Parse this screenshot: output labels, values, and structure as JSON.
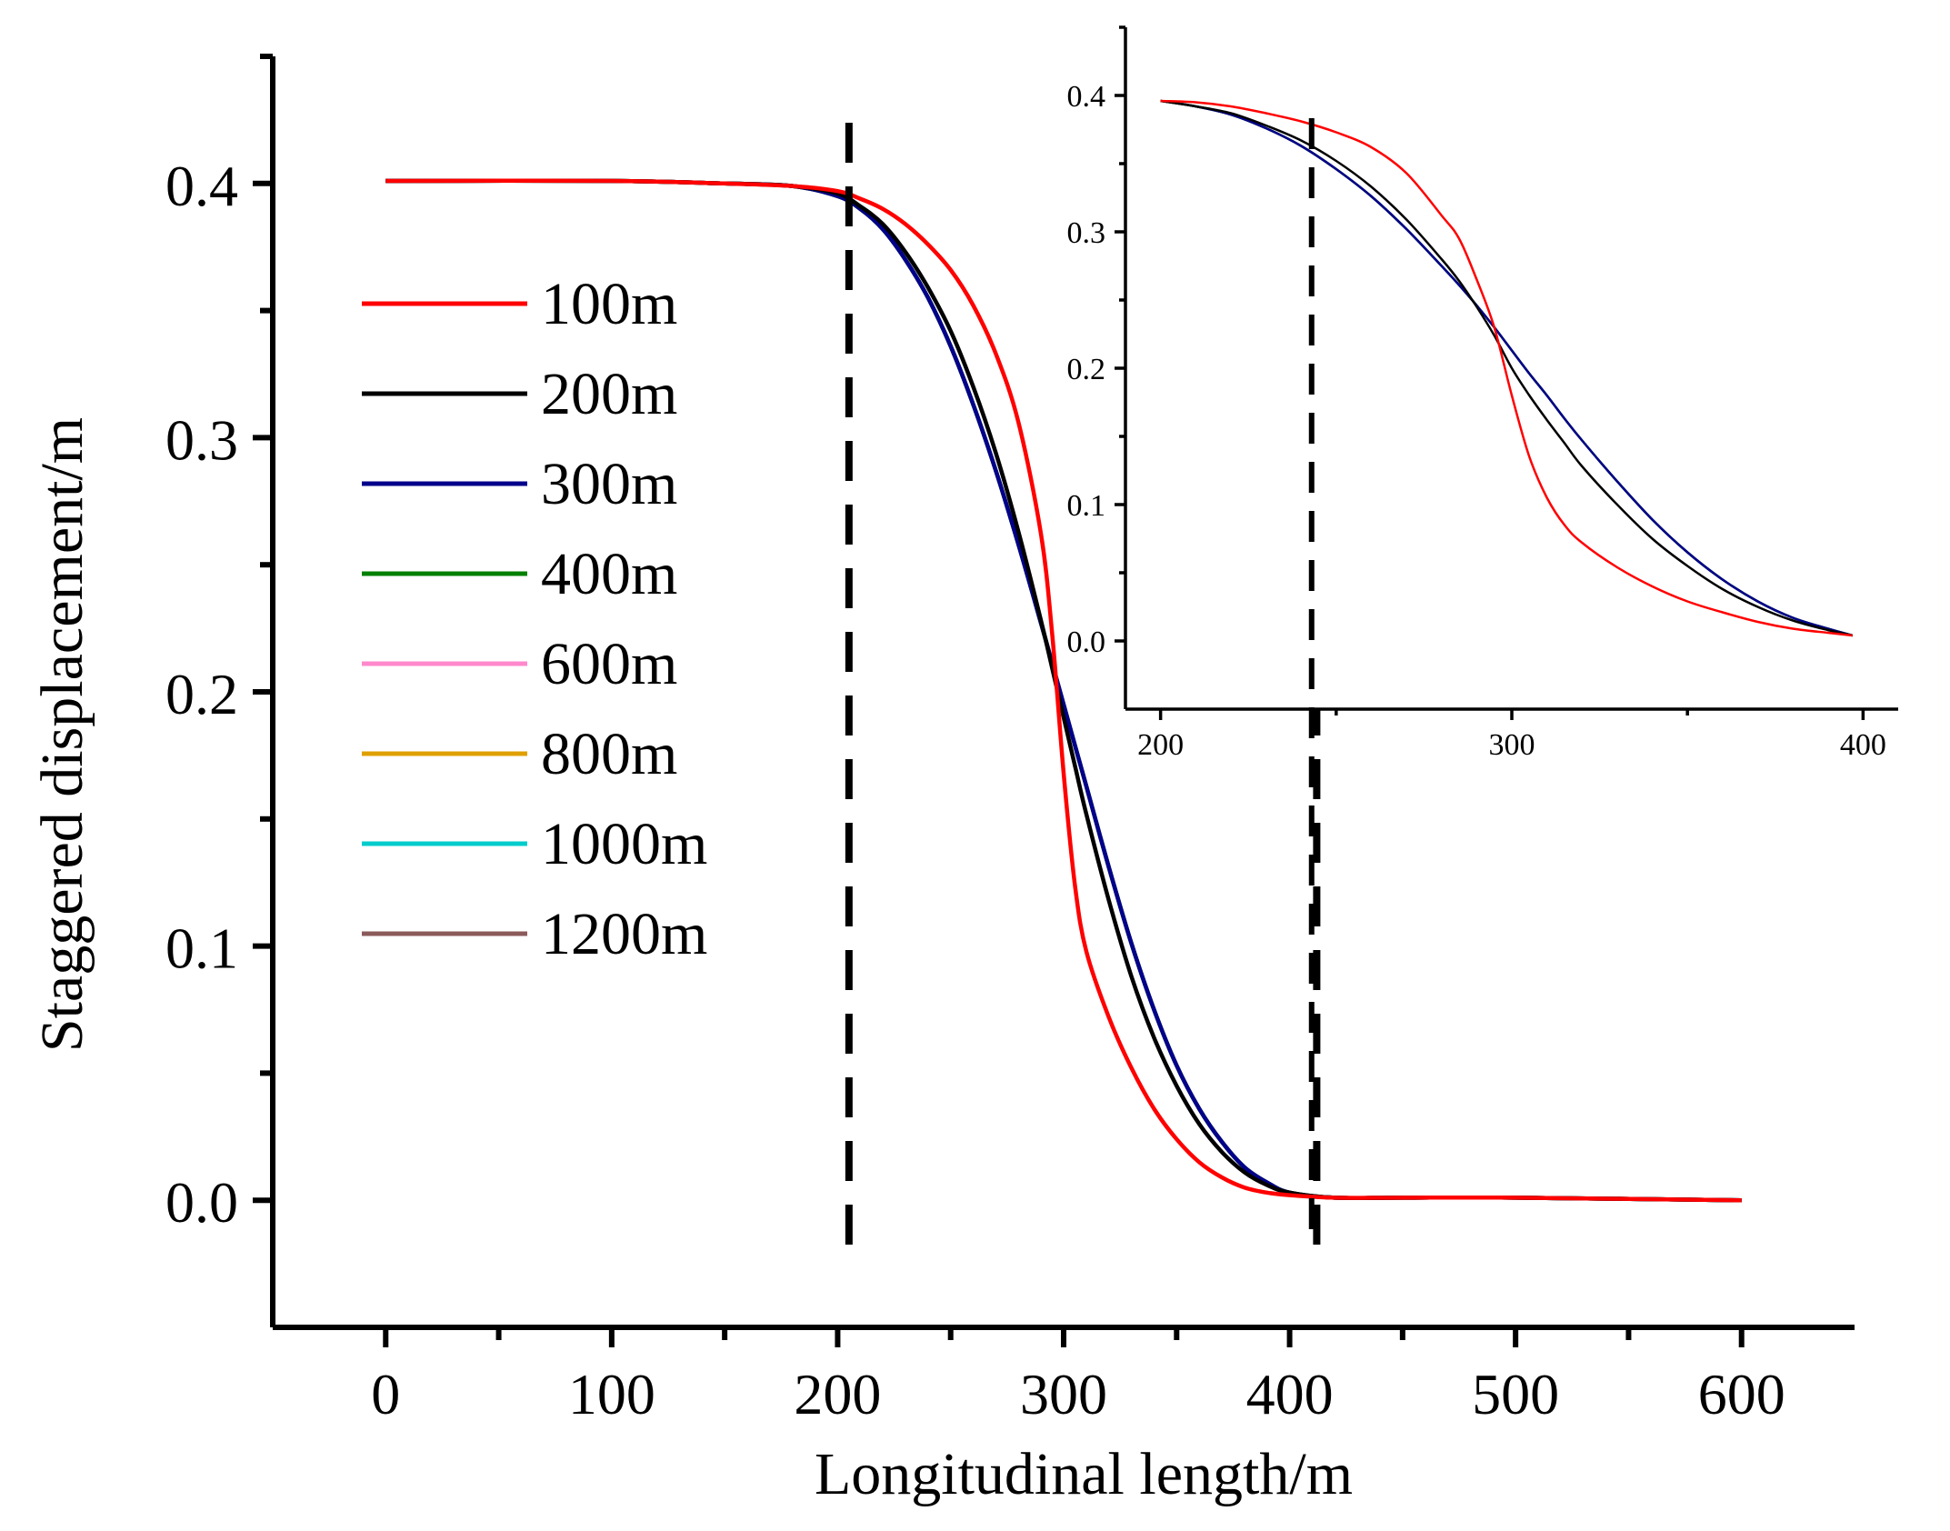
{
  "chart_data": [
    {
      "type": "line",
      "title": "",
      "xlabel": "Longitudinal length/m",
      "ylabel": "Staggered displacement/m",
      "xlim": [
        -50,
        650
      ],
      "ylim": [
        -0.05,
        0.45
      ],
      "xticks": [
        0,
        100,
        200,
        300,
        400,
        500,
        600
      ],
      "yticks": [
        0.0,
        0.1,
        0.2,
        0.3,
        0.4
      ],
      "xtick_labels": [
        "0",
        "100",
        "200",
        "300",
        "400",
        "500",
        "600"
      ],
      "ytick_labels": [
        "0.0",
        "0.1",
        "0.2",
        "0.3",
        "0.4"
      ],
      "grid": false,
      "legend_position": "left",
      "reference_lines_x": [
        205,
        412
      ],
      "x": [
        0,
        100,
        150,
        180,
        200,
        210,
        220,
        230,
        240,
        250,
        260,
        270,
        280,
        290,
        295,
        300,
        305,
        310,
        320,
        330,
        340,
        350,
        360,
        370,
        380,
        390,
        400,
        420,
        450,
        500,
        600
      ],
      "series": [
        {
          "name": "100m",
          "color": "#ff0000",
          "values": [
            0.401,
            0.401,
            0.4,
            0.399,
            0.397,
            0.394,
            0.39,
            0.384,
            0.376,
            0.366,
            0.352,
            0.333,
            0.306,
            0.262,
            0.222,
            0.168,
            0.124,
            0.098,
            0.072,
            0.052,
            0.036,
            0.024,
            0.015,
            0.009,
            0.005,
            0.003,
            0.002,
            0.001,
            0.001,
            0.001,
            0.0
          ]
        },
        {
          "name": "200m",
          "color": "#000000",
          "values": [
            0.401,
            0.401,
            0.4,
            0.399,
            0.396,
            0.391,
            0.384,
            0.373,
            0.359,
            0.342,
            0.32,
            0.294,
            0.263,
            0.228,
            0.209,
            0.19,
            0.171,
            0.152,
            0.118,
            0.088,
            0.064,
            0.045,
            0.03,
            0.019,
            0.011,
            0.006,
            0.003,
            0.001,
            0.001,
            0.001,
            0.0
          ]
        },
        {
          "name": "300m",
          "color": "#00008b",
          "values": [
            0.401,
            0.401,
            0.4,
            0.399,
            0.395,
            0.39,
            0.382,
            0.37,
            0.355,
            0.336,
            0.313,
            0.287,
            0.258,
            0.227,
            0.211,
            0.195,
            0.179,
            0.163,
            0.131,
            0.101,
            0.075,
            0.053,
            0.036,
            0.023,
            0.013,
            0.007,
            0.003,
            0.001,
            0.001,
            0.001,
            0.0
          ]
        },
        {
          "name": "400m",
          "color": "#008000",
          "values": [
            0.401,
            0.401,
            0.4,
            0.399,
            0.395,
            0.39,
            0.382,
            0.37,
            0.355,
            0.336,
            0.313,
            0.287,
            0.258,
            0.227,
            0.211,
            0.195,
            0.179,
            0.163,
            0.131,
            0.101,
            0.075,
            0.053,
            0.036,
            0.023,
            0.013,
            0.007,
            0.003,
            0.001,
            0.001,
            0.001,
            0.0
          ]
        },
        {
          "name": "600m",
          "color": "#ff88cc",
          "values": [
            0.401,
            0.401,
            0.4,
            0.399,
            0.395,
            0.39,
            0.382,
            0.37,
            0.355,
            0.336,
            0.313,
            0.287,
            0.258,
            0.227,
            0.211,
            0.195,
            0.179,
            0.163,
            0.131,
            0.101,
            0.075,
            0.053,
            0.036,
            0.023,
            0.013,
            0.007,
            0.003,
            0.001,
            0.001,
            0.001,
            0.0
          ]
        },
        {
          "name": "800m",
          "color": "#e0a000",
          "values": [
            0.401,
            0.401,
            0.4,
            0.399,
            0.395,
            0.39,
            0.382,
            0.37,
            0.355,
            0.336,
            0.313,
            0.287,
            0.258,
            0.227,
            0.211,
            0.195,
            0.179,
            0.163,
            0.131,
            0.101,
            0.075,
            0.053,
            0.036,
            0.023,
            0.013,
            0.007,
            0.003,
            0.001,
            0.001,
            0.001,
            0.0
          ]
        },
        {
          "name": "1000m",
          "color": "#00cccc",
          "values": [
            0.401,
            0.401,
            0.4,
            0.399,
            0.395,
            0.39,
            0.382,
            0.37,
            0.355,
            0.336,
            0.313,
            0.287,
            0.258,
            0.227,
            0.211,
            0.195,
            0.179,
            0.163,
            0.131,
            0.101,
            0.075,
            0.053,
            0.036,
            0.023,
            0.013,
            0.007,
            0.003,
            0.001,
            0.001,
            0.001,
            0.0
          ]
        },
        {
          "name": "1200m",
          "color": "#8b5a5a",
          "values": [
            0.401,
            0.401,
            0.4,
            0.399,
            0.395,
            0.39,
            0.382,
            0.37,
            0.355,
            0.336,
            0.313,
            0.287,
            0.258,
            0.227,
            0.211,
            0.195,
            0.179,
            0.163,
            0.131,
            0.101,
            0.075,
            0.053,
            0.036,
            0.023,
            0.013,
            0.007,
            0.003,
            0.001,
            0.001,
            0.001,
            0.0
          ]
        }
      ]
    },
    {
      "type": "line",
      "title": "",
      "xlabel": "",
      "ylabel": "",
      "xlim": [
        190,
        410
      ],
      "ylim": [
        -0.05,
        0.45
      ],
      "xticks": [
        200,
        300,
        400
      ],
      "yticks": [
        0.0,
        0.1,
        0.2,
        0.3,
        0.4
      ],
      "xtick_labels": [
        "200",
        "300",
        "400"
      ],
      "ytick_labels": [
        "0.0",
        "0.1",
        "0.2",
        "0.3",
        "0.4"
      ],
      "grid": false,
      "reference_lines_x": [
        243
      ],
      "x": [
        200,
        210,
        220,
        230,
        240,
        250,
        260,
        270,
        280,
        285,
        290,
        295,
        300,
        305,
        310,
        315,
        320,
        330,
        340,
        350,
        360,
        370,
        380,
        390,
        397
      ],
      "series": [
        {
          "name": "100m",
          "color": "#ff0000",
          "values": [
            0.396,
            0.395,
            0.392,
            0.387,
            0.381,
            0.373,
            0.362,
            0.343,
            0.312,
            0.295,
            0.265,
            0.23,
            0.18,
            0.135,
            0.105,
            0.085,
            0.072,
            0.054,
            0.04,
            0.029,
            0.021,
            0.014,
            0.009,
            0.006,
            0.004
          ]
        },
        {
          "name": "200m",
          "color": "#000000",
          "values": [
            0.396,
            0.392,
            0.387,
            0.378,
            0.367,
            0.352,
            0.333,
            0.309,
            0.28,
            0.264,
            0.245,
            0.224,
            0.2,
            0.18,
            0.162,
            0.145,
            0.128,
            0.1,
            0.075,
            0.055,
            0.038,
            0.025,
            0.015,
            0.008,
            0.004
          ]
        },
        {
          "name": "300m",
          "color": "#00008b",
          "values": [
            0.396,
            0.392,
            0.386,
            0.376,
            0.363,
            0.346,
            0.326,
            0.302,
            0.275,
            0.261,
            0.246,
            0.23,
            0.213,
            0.196,
            0.18,
            0.163,
            0.147,
            0.117,
            0.089,
            0.065,
            0.045,
            0.029,
            0.017,
            0.009,
            0.004
          ]
        },
        {
          "name": "400m",
          "color": "#008000",
          "values": [
            0.396,
            0.392,
            0.386,
            0.376,
            0.363,
            0.346,
            0.326,
            0.302,
            0.275,
            0.261,
            0.246,
            0.23,
            0.213,
            0.196,
            0.18,
            0.163,
            0.147,
            0.117,
            0.089,
            0.065,
            0.045,
            0.029,
            0.017,
            0.009,
            0.004
          ]
        },
        {
          "name": "600m",
          "color": "#ff88cc",
          "values": [
            0.396,
            0.392,
            0.386,
            0.376,
            0.363,
            0.346,
            0.326,
            0.302,
            0.275,
            0.261,
            0.246,
            0.23,
            0.213,
            0.196,
            0.18,
            0.163,
            0.147,
            0.117,
            0.089,
            0.065,
            0.045,
            0.029,
            0.017,
            0.009,
            0.004
          ]
        },
        {
          "name": "800m",
          "color": "#e0a000",
          "values": [
            0.396,
            0.392,
            0.386,
            0.376,
            0.363,
            0.346,
            0.326,
            0.302,
            0.275,
            0.261,
            0.246,
            0.23,
            0.213,
            0.196,
            0.18,
            0.163,
            0.147,
            0.117,
            0.089,
            0.065,
            0.045,
            0.029,
            0.017,
            0.009,
            0.004
          ]
        },
        {
          "name": "1000m",
          "color": "#00cccc",
          "values": [
            0.396,
            0.392,
            0.386,
            0.376,
            0.363,
            0.346,
            0.326,
            0.302,
            0.275,
            0.261,
            0.246,
            0.23,
            0.213,
            0.196,
            0.18,
            0.163,
            0.147,
            0.117,
            0.089,
            0.065,
            0.045,
            0.029,
            0.017,
            0.009,
            0.004
          ]
        },
        {
          "name": "1200m",
          "color": "#8b5a5a",
          "values": [
            0.396,
            0.392,
            0.386,
            0.376,
            0.363,
            0.346,
            0.326,
            0.302,
            0.275,
            0.261,
            0.246,
            0.23,
            0.213,
            0.196,
            0.18,
            0.163,
            0.147,
            0.117,
            0.089,
            0.065,
            0.045,
            0.029,
            0.017,
            0.009,
            0.004
          ]
        }
      ]
    }
  ]
}
